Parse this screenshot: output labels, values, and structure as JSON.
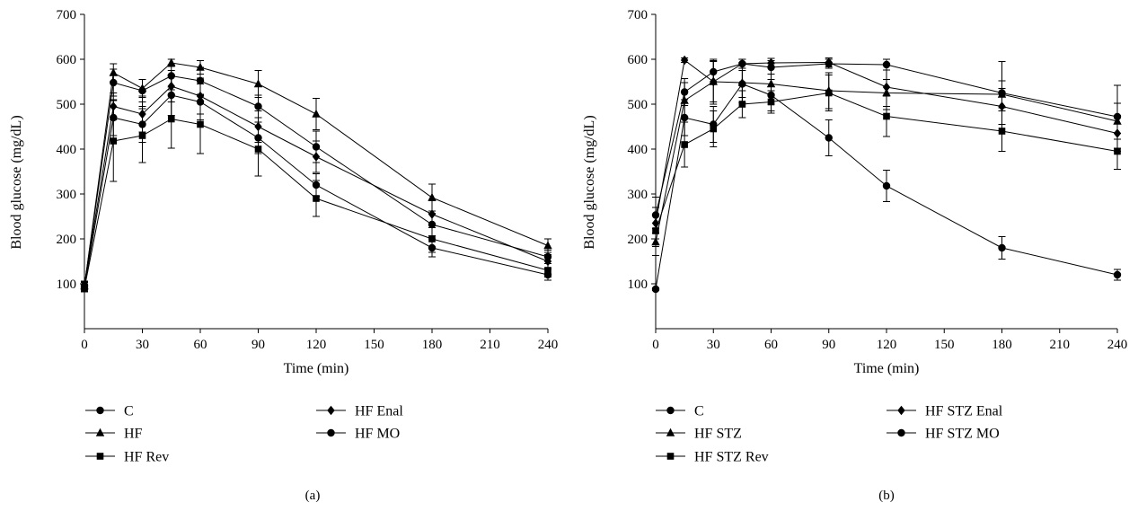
{
  "chart_data": [
    {
      "type": "line",
      "panel_label": "(a)",
      "xlabel": "Time (min)",
      "ylabel": "Blood glucose (mg/dL)",
      "xlim": [
        0,
        240
      ],
      "ylim": [
        0,
        700
      ],
      "xticks": [
        0,
        30,
        60,
        90,
        120,
        150,
        180,
        210,
        240
      ],
      "yticks": [
        100,
        200,
        300,
        400,
        500,
        600,
        700
      ],
      "grid": false,
      "legend_position": "bottom",
      "x": [
        0,
        15,
        30,
        45,
        60,
        90,
        120,
        180,
        240
      ],
      "series": [
        {
          "name": "C",
          "marker": "circle",
          "values": [
            92,
            470,
            455,
            520,
            505,
            425,
            320,
            180,
            120
          ],
          "errors": [
            8,
            40,
            40,
            45,
            40,
            35,
            25,
            20,
            12
          ]
        },
        {
          "name": "HF",
          "marker": "triangle",
          "values": [
            95,
            570,
            535,
            592,
            582,
            545,
            478,
            292,
            185
          ],
          "errors": [
            8,
            20,
            20,
            8,
            15,
            30,
            35,
            30,
            15
          ]
        },
        {
          "name": "HF Rev",
          "marker": "square",
          "values": [
            90,
            418,
            430,
            467,
            455,
            400,
            290,
            200,
            130
          ],
          "errors": [
            8,
            90,
            60,
            65,
            65,
            60,
            40,
            30,
            15
          ]
        },
        {
          "name": "HF Enal",
          "marker": "diamond",
          "values": [
            98,
            495,
            478,
            540,
            518,
            450,
            383,
            255,
            150
          ],
          "errors": [
            8,
            30,
            40,
            35,
            40,
            35,
            35,
            30,
            15
          ]
        },
        {
          "name": "HF MO",
          "marker": "circle",
          "values": [
            96,
            548,
            530,
            563,
            552,
            495,
            405,
            232,
            160
          ],
          "errors": [
            8,
            30,
            25,
            25,
            30,
            25,
            35,
            25,
            15
          ]
        }
      ]
    },
    {
      "type": "line",
      "panel_label": "(b)",
      "xlabel": "Time (min)",
      "ylabel": "Blood glucose (mg/dL)",
      "xlim": [
        0,
        240
      ],
      "ylim": [
        0,
        700
      ],
      "xticks": [
        0,
        30,
        60,
        90,
        120,
        150,
        180,
        210,
        240
      ],
      "yticks": [
        100,
        200,
        300,
        400,
        500,
        600,
        700
      ],
      "grid": false,
      "legend_position": "bottom",
      "x": [
        0,
        15,
        30,
        45,
        60,
        90,
        120,
        180,
        240
      ],
      "series": [
        {
          "name": "C",
          "marker": "circle",
          "values": [
            88,
            470,
            455,
            545,
            520,
            425,
            318,
            180,
            120
          ],
          "errors": [
            3,
            40,
            40,
            30,
            35,
            40,
            35,
            25,
            12
          ]
        },
        {
          "name": "HF STZ",
          "marker": "triangle",
          "values": [
            193,
            508,
            550,
            548,
            545,
            530,
            525,
            522,
            462
          ],
          "errors": [
            30,
            40,
            45,
            45,
            45,
            40,
            30,
            30,
            40
          ]
        },
        {
          "name": "HF STZ Rev",
          "marker": "square",
          "values": [
            218,
            410,
            445,
            500,
            505,
            525,
            473,
            440,
            395
          ],
          "errors": [
            35,
            50,
            40,
            30,
            25,
            40,
            45,
            45,
            40
          ]
        },
        {
          "name": "HF STZ Enal",
          "marker": "diamond",
          "values": [
            235,
            598,
            550,
            590,
            592,
            593,
            538,
            495,
            435
          ],
          "errors": [
            35,
            5,
            50,
            10,
            10,
            10,
            50,
            40,
            40
          ]
        },
        {
          "name": "HF STZ MO",
          "marker": "circle",
          "values": [
            253,
            527,
            572,
            590,
            582,
            590,
            588,
            525,
            472
          ],
          "errors": [
            40,
            30,
            25,
            10,
            15,
            10,
            12,
            70,
            70
          ]
        }
      ]
    }
  ]
}
